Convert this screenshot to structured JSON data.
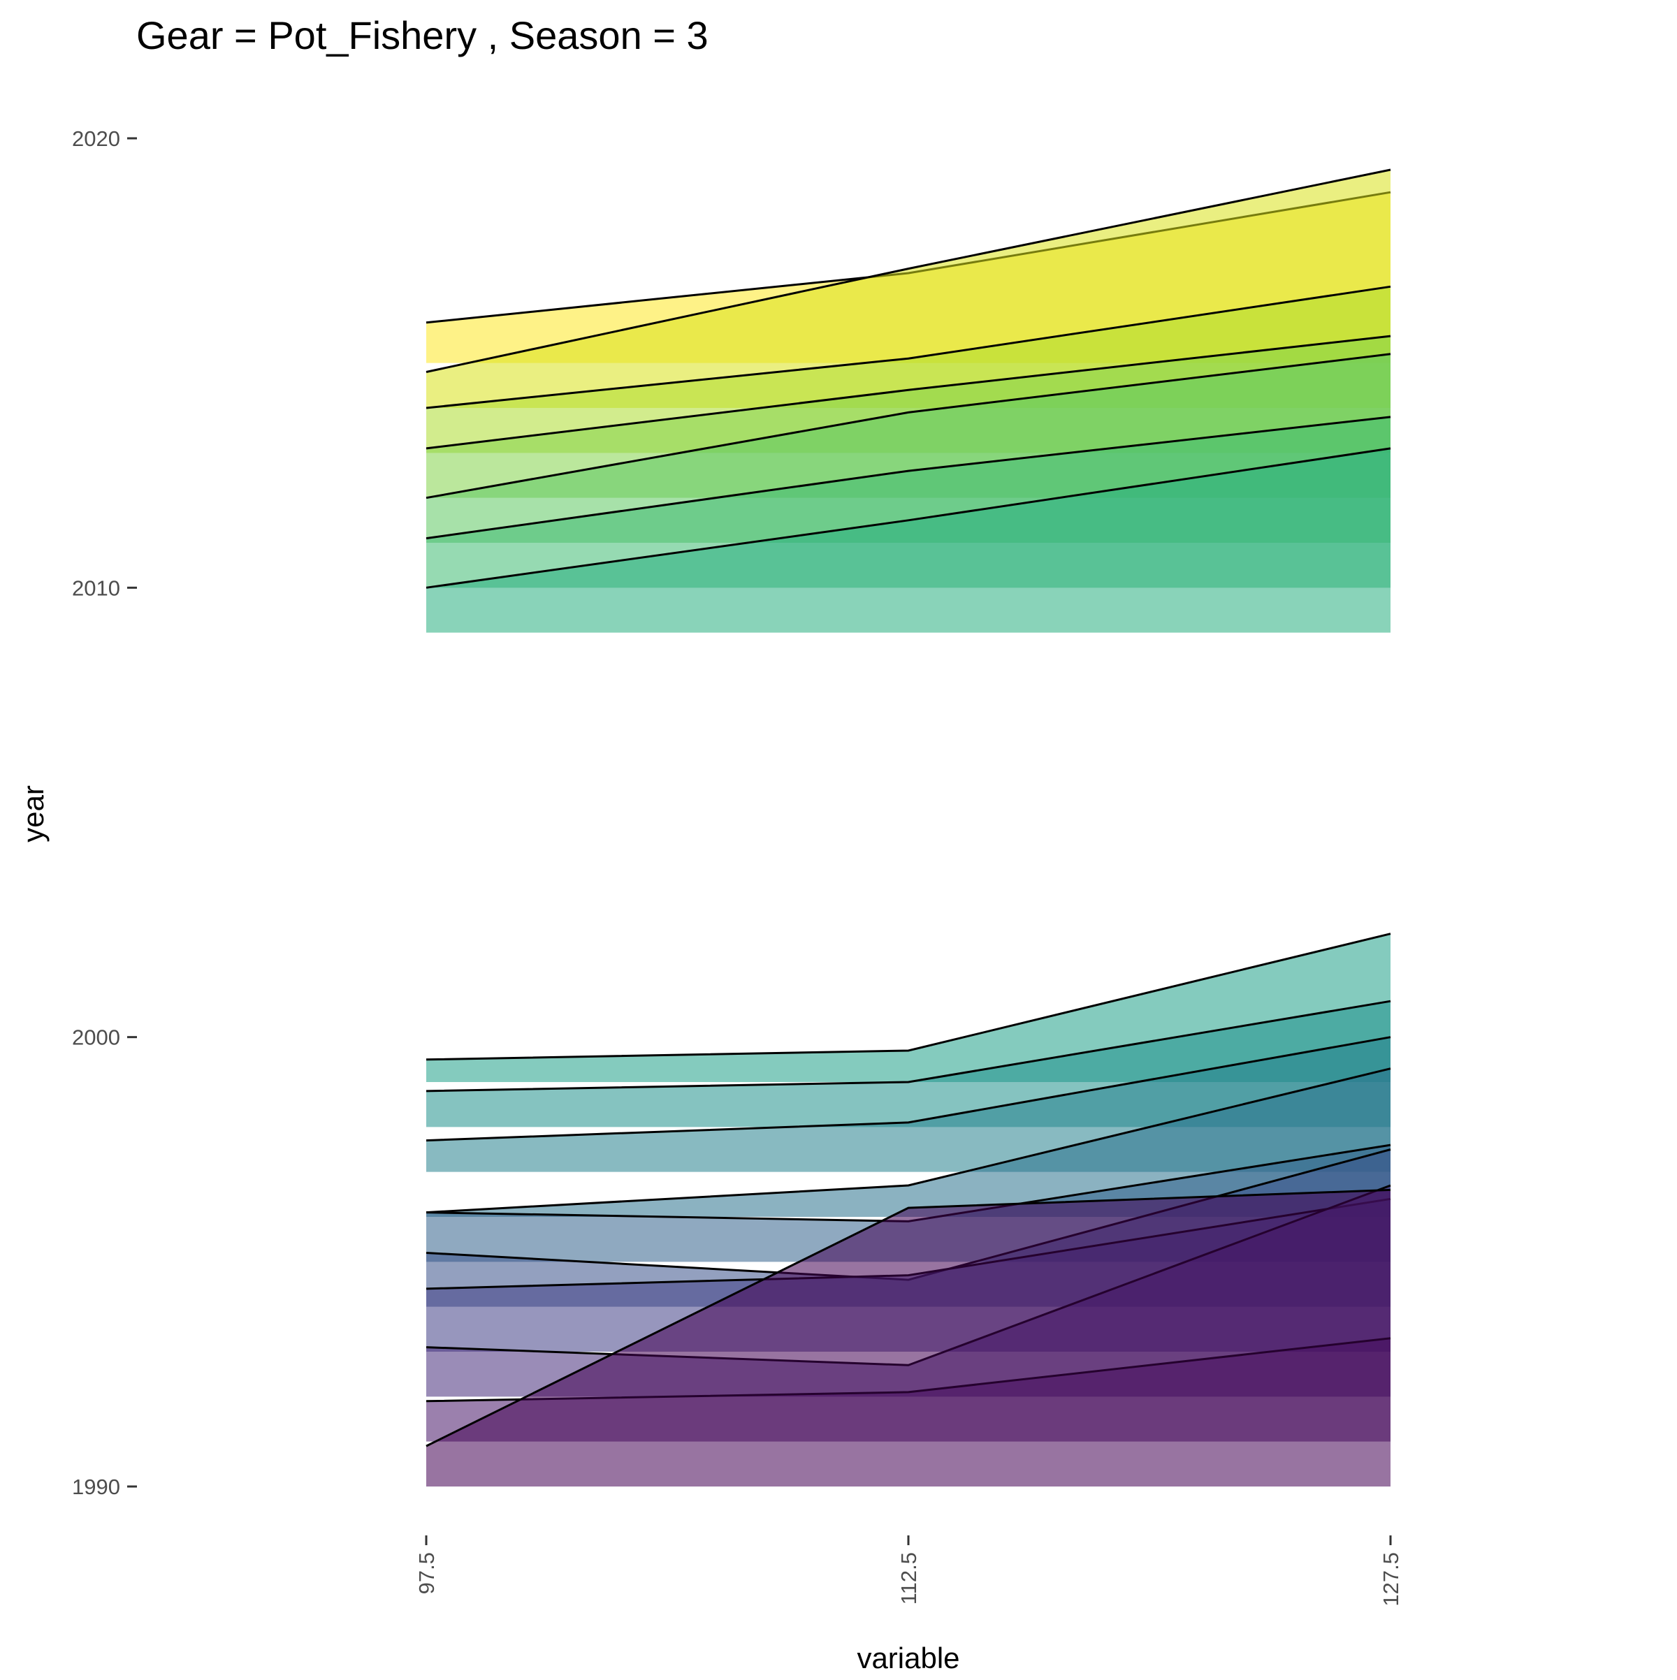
{
  "chart_data": {
    "type": "area",
    "title": "Gear = Pot_Fishery , Season = 3",
    "xlabel": "variable",
    "ylabel": "year",
    "x": [
      97.5,
      112.5,
      127.5
    ],
    "x_tick_labels": [
      "97.5",
      "112.5",
      "127.5"
    ],
    "y_ticks": [
      1990,
      2000,
      2010,
      2020
    ],
    "y_tick_labels": [
      "1990",
      "2000",
      "2010",
      "2020"
    ],
    "ylim": [
      1989,
      2021
    ],
    "ridge_scale_years_per_unit": 1,
    "grid": false,
    "legend": "none",
    "series": [
      {
        "year": 1990,
        "values": [
          0.9,
          6.2,
          6.6
        ],
        "color": "#440154"
      },
      {
        "year": 1991,
        "values": [
          0.9,
          1.1,
          2.3
        ],
        "color": "#48186a"
      },
      {
        "year": 1992,
        "values": [
          1.1,
          0.7,
          4.7
        ],
        "color": "#472d7b"
      },
      {
        "year": 1993,
        "values": [
          1.4,
          1.7,
          3.4
        ],
        "color": "#424086"
      },
      {
        "year": 1994,
        "values": [
          1.2,
          0.6,
          3.5
        ],
        "color": "#3b528b"
      },
      {
        "year": 1995,
        "values": [
          1.1,
          0.9,
          2.6
        ],
        "color": "#33638d"
      },
      {
        "year": 1996,
        "values": [
          0.1,
          0.7,
          3.3
        ],
        "color": "#2c728e"
      },
      {
        "year": 1997,
        "values": [
          0.7,
          1.1,
          3.0
        ],
        "color": "#26828e"
      },
      {
        "year": 1998,
        "values": [
          0.8,
          1.0,
          2.8
        ],
        "color": "#21918c"
      },
      {
        "year": 1999,
        "values": [
          0.5,
          0.7,
          3.3
        ],
        "color": "#1fa088"
      },
      {
        "year": 2009,
        "values": [
          1.0,
          2.5,
          4.1
        ],
        "color": "#28ae80"
      },
      {
        "year": 2010,
        "values": [
          1.1,
          2.6,
          3.8
        ],
        "color": "#3fbc73"
      },
      {
        "year": 2011,
        "values": [
          1.0,
          2.9,
          4.2
        ],
        "color": "#5ec962"
      },
      {
        "year": 2012,
        "values": [
          1.1,
          2.4,
          3.6
        ],
        "color": "#84d44b"
      },
      {
        "year": 2013,
        "values": [
          1.0,
          2.1,
          3.7
        ],
        "color": "#addc30"
      },
      {
        "year": 2014,
        "values": [
          0.8,
          3.1,
          5.3
        ],
        "color": "#d8e219"
      },
      {
        "year": 2015,
        "values": [
          0.9,
          2.0,
          3.8
        ],
        "color": "#fde725"
      }
    ]
  }
}
